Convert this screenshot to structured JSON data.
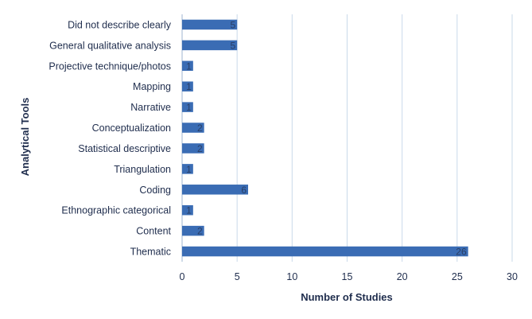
{
  "chart_data": {
    "type": "bar",
    "orientation": "horizontal",
    "categories": [
      "Did not describe clearly",
      "General qualitative analysis",
      "Projective technique/photos",
      "Mapping",
      "Narrative",
      "Conceptualization",
      "Statistical descriptive",
      "Triangulation",
      "Coding",
      "Ethnographic categorical",
      "Content",
      "Thematic"
    ],
    "values": [
      5,
      5,
      1,
      1,
      1,
      2,
      2,
      1,
      6,
      1,
      2,
      26
    ],
    "data_labels": [
      "5",
      "5",
      "1",
      "1",
      "1",
      "2",
      "2",
      "1",
      "6",
      "1",
      "2",
      "26"
    ],
    "xlabel": "Number of Studies",
    "ylabel": "Analytical Tools",
    "xlim": [
      0,
      30
    ],
    "xticks": [
      "0",
      "5",
      "10",
      "15",
      "20",
      "25",
      "30"
    ],
    "xtick_values": [
      0,
      5,
      10,
      15,
      20,
      25,
      30
    ],
    "grid": "vertical",
    "bar_color": "#3a6cb4",
    "grid_color": "#c9d9ea"
  }
}
